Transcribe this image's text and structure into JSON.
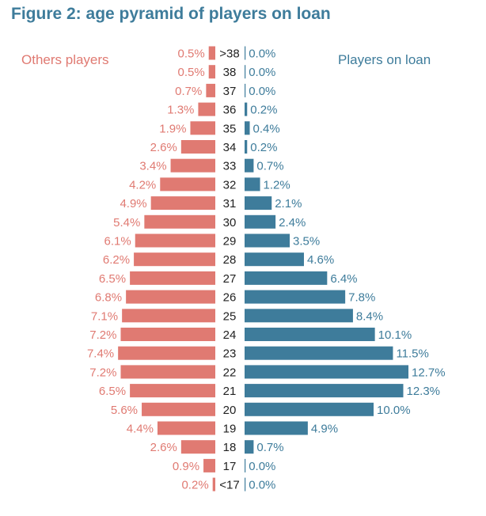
{
  "title": "Figure 2: age pyramid of players on loan",
  "colors": {
    "others": "#e07a72",
    "loan": "#3e7c9b",
    "title": "#3e7c9b",
    "age_text": "#222222"
  },
  "chart_data": {
    "type": "bar",
    "orientation": "horizontal-pyramid",
    "title": "Figure 2: age pyramid of players on loan",
    "categories": [
      ">38",
      "38",
      "37",
      "36",
      "35",
      "34",
      "33",
      "32",
      "31",
      "30",
      "29",
      "28",
      "27",
      "26",
      "25",
      "24",
      "23",
      "22",
      "21",
      "20",
      "19",
      "18",
      "17",
      "<17"
    ],
    "series": [
      {
        "name": "Others players",
        "side": "left",
        "values": [
          0.5,
          0.5,
          0.7,
          1.3,
          1.9,
          2.6,
          3.4,
          4.2,
          4.9,
          5.4,
          6.1,
          6.2,
          6.5,
          6.8,
          7.1,
          7.2,
          7.4,
          7.2,
          6.5,
          5.6,
          4.4,
          2.6,
          0.9,
          0.2
        ],
        "labels": [
          "0.5%",
          "0.5%",
          "0.7%",
          "1.3%",
          "1.9%",
          "2.6%",
          "3.4%",
          "4.2%",
          "4.9%",
          "5.4%",
          "6.1%",
          "6.2%",
          "6.5%",
          "6.8%",
          "7.1%",
          "7.2%",
          "7.4%",
          "7.2%",
          "6.5%",
          "5.6%",
          "4.4%",
          "2.6%",
          "0.9%",
          "0.2%"
        ]
      },
      {
        "name": "Players on loan",
        "side": "right",
        "values": [
          0.0,
          0.0,
          0.0,
          0.2,
          0.4,
          0.2,
          0.7,
          1.2,
          2.1,
          2.4,
          3.5,
          4.6,
          6.4,
          7.8,
          8.4,
          10.1,
          11.5,
          12.7,
          12.3,
          10.0,
          4.9,
          0.7,
          0.0,
          0.0
        ],
        "labels": [
          "0.0%",
          "0.0%",
          "0.0%",
          "0.2%",
          "0.4%",
          "0.2%",
          "0.7%",
          "1.2%",
          "2.1%",
          "2.4%",
          "3.5%",
          "4.6%",
          "6.4%",
          "7.8%",
          "8.4%",
          "10.1%",
          "11.5%",
          "12.7%",
          "12.3%",
          "10.0%",
          "4.9%",
          "0.7%",
          "0.0%",
          "0.0%"
        ]
      }
    ],
    "legend": [
      "Others players",
      "Players on loan"
    ],
    "grid": false
  }
}
